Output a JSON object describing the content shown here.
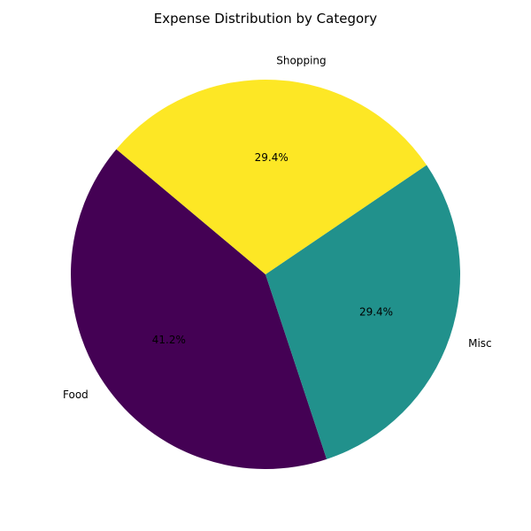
{
  "chart_data": {
    "type": "pie",
    "title": "Expense Distribution by Category",
    "start_angle_deg": 140,
    "direction": "counterclockwise",
    "slices": [
      {
        "label": "Food",
        "value": 41.2,
        "percent_label": "41.2%",
        "color": "#440154"
      },
      {
        "label": "Misc",
        "value": 29.4,
        "percent_label": "29.4%",
        "color": "#21918c"
      },
      {
        "label": "Shopping",
        "value": 29.4,
        "percent_label": "29.4%",
        "color": "#fde725"
      }
    ],
    "legend": "none",
    "grid": false
  }
}
